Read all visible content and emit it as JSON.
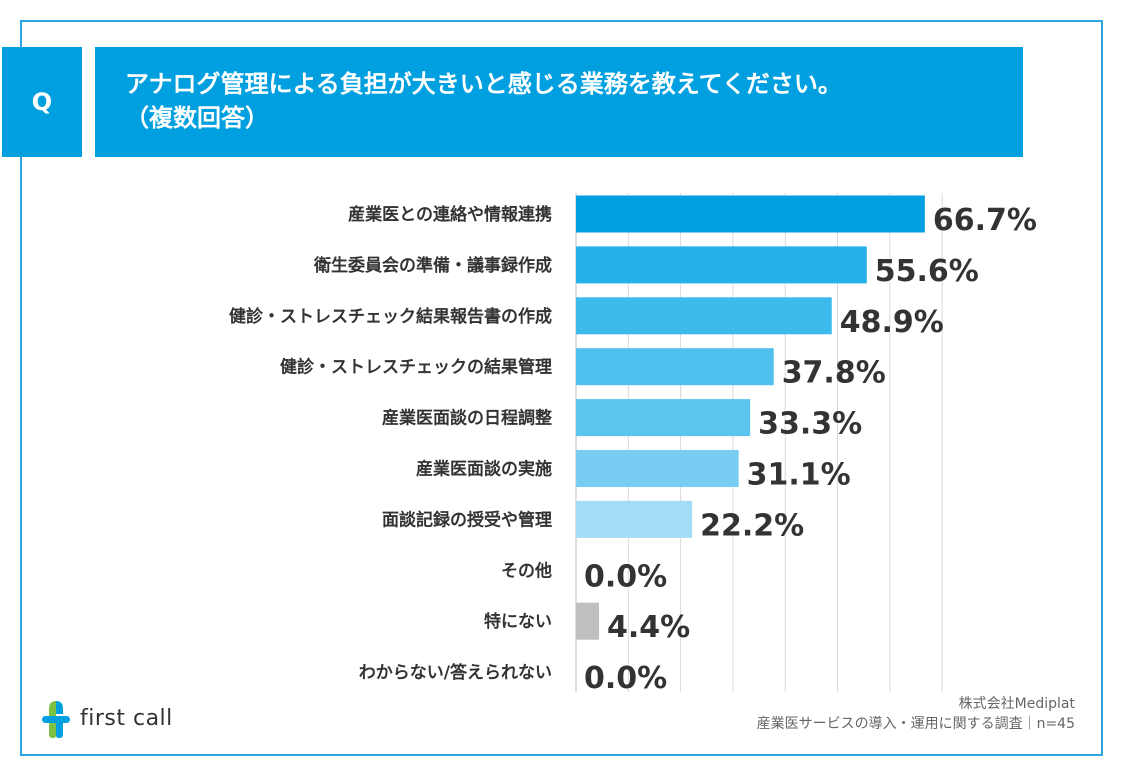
{
  "question": {
    "badge": "Q",
    "line1": "アナログ管理による負担が大きいと感じる業務を教えてください。",
    "line2": "（複数回答）"
  },
  "chart_data": {
    "type": "bar",
    "orientation": "horizontal",
    "title": "アナログ管理による負担が大きいと感じる業務を教えてください。（複数回答）",
    "xlim": [
      0,
      70
    ],
    "categories": [
      "産業医との連絡や情報連携",
      "衛生委員会の準備・議事録作成",
      "健診・ストレスチェック結果報告書の作成",
      "健診・ストレスチェックの結果管理",
      "産業医面談の日程調整",
      "産業医面談の実施",
      "面談記録の授受や管理",
      "その他",
      "特にない",
      "わからない/答えられない"
    ],
    "values": [
      66.7,
      55.6,
      48.9,
      37.8,
      33.3,
      31.1,
      22.2,
      0.0,
      4.4,
      0.0
    ],
    "value_labels": [
      "66.7%",
      "55.6%",
      "48.9%",
      "37.8%",
      "33.3%",
      "31.1%",
      "22.2%",
      "0.0%",
      "4.4%",
      "0.0%"
    ],
    "colors": [
      "#00a0e0",
      "#25b0ea",
      "#3dbaec",
      "#4ec1ee",
      "#5cc5ef",
      "#77cef2",
      "#a3dcf6",
      "#a3dcf6",
      "#bfbfbf",
      "#bfbfbf"
    ]
  },
  "footer": {
    "logo_text": "first call",
    "company": "株式会社Mediplat",
    "survey": "産業医サービスの導入・運用に関する調査｜n=45"
  },
  "colors": {
    "accent": "#00a0e0",
    "frame": "#29a6dc"
  }
}
